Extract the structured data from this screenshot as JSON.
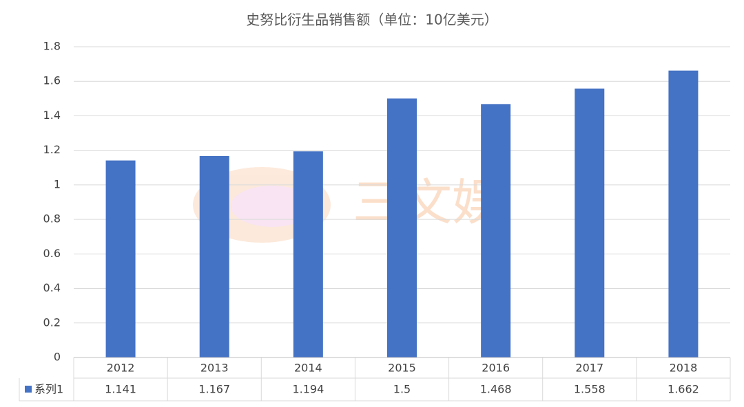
{
  "chart_data": {
    "type": "bar",
    "title": "史努比衍生品销售额（单位：10亿美元）",
    "categories": [
      "2012",
      "2013",
      "2014",
      "2015",
      "2016",
      "2017",
      "2018"
    ],
    "series": [
      {
        "name": "系列1",
        "color": "#4472c4",
        "values": [
          1.141,
          1.167,
          1.194,
          1.5,
          1.468,
          1.558,
          1.662
        ]
      }
    ],
    "ylim": [
      0,
      1.8
    ],
    "yticks": [
      0,
      0.2,
      0.4,
      0.6,
      0.8,
      1,
      1.2,
      1.4,
      1.6,
      1.8
    ],
    "grid": true,
    "watermark": "三文娱"
  }
}
